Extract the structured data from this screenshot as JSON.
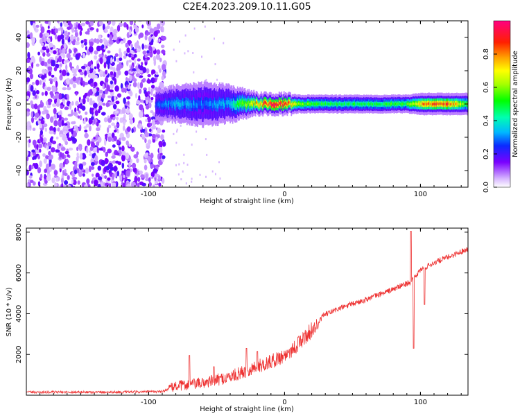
{
  "figure_title": "C2E4.2023.209.10.11.G05",
  "chart_data": [
    {
      "type": "heatmap",
      "title": "",
      "xlabel": "Height of straight line (km)",
      "ylabel": "Frequency (Hz)",
      "xlim": [
        -190,
        135
      ],
      "ylim": [
        -50,
        50
      ],
      "xticks": [
        -100,
        0,
        100
      ],
      "yticks": [
        -40,
        -20,
        0,
        20,
        40
      ],
      "xtick_labels": [
        "-100",
        "0",
        "100"
      ],
      "ytick_labels": [
        "-40",
        "-20",
        "0",
        "20",
        "40"
      ],
      "colorbar": {
        "label": "Normalized spectral amplitude",
        "range": [
          0,
          1
        ],
        "ticks": [
          0.0,
          0.2,
          0.4,
          0.6,
          0.8
        ],
        "tick_labels": [
          "0.0",
          "0.2",
          "0.4",
          "0.6",
          "0.8"
        ],
        "colormap": "rainbow (white-violet-blue-cyan-green-yellow-orange-red-magenta)"
      },
      "noise_region_x": [
        -190,
        -88
      ],
      "signal_band": {
        "center_hz": 0,
        "x_points": [
          -95,
          -80,
          -60,
          -40,
          -30,
          -20,
          -10,
          0,
          10,
          30,
          60,
          90,
          100,
          120,
          135
        ],
        "half_width_hz": [
          4,
          5,
          6,
          5,
          4,
          3,
          3,
          3,
          2.5,
          2.5,
          2.5,
          2.5,
          3,
          3,
          3
        ],
        "peak_amplitude": [
          0.3,
          0.35,
          0.3,
          0.35,
          0.6,
          0.75,
          0.95,
          0.95,
          0.6,
          0.5,
          0.5,
          0.55,
          0.8,
          0.9,
          0.5
        ]
      }
    },
    {
      "type": "line",
      "title": "",
      "xlabel": "Height of straight line (km)",
      "ylabel": "SNR (10 * v/v)",
      "xlim": [
        -190,
        135
      ],
      "ylim": [
        0,
        8200
      ],
      "xticks": [
        -100,
        0,
        100
      ],
      "yticks": [
        2000,
        4000,
        6000,
        8000
      ],
      "xtick_labels": [
        "-100",
        "0",
        "100"
      ],
      "ytick_labels": [
        "2000",
        "4000",
        "6000",
        "8000"
      ],
      "line_color": "#ee3333",
      "trend": {
        "x": [
          -190,
          -120,
          -90,
          -80,
          -60,
          -40,
          -20,
          -10,
          0,
          10,
          20,
          25,
          28,
          40,
          60,
          80,
          94,
          100,
          110,
          125,
          135
        ],
        "y": [
          150,
          150,
          180,
          450,
          600,
          900,
          1400,
          1650,
          1950,
          2500,
          3200,
          3500,
          3900,
          4250,
          4700,
          5200,
          5600,
          6150,
          6500,
          6900,
          7200
        ]
      },
      "spikes": [
        {
          "x": -70,
          "y": 1950
        },
        {
          "x": -52,
          "y": 1400
        },
        {
          "x": -28,
          "y": 2300
        },
        {
          "x": -20,
          "y": 2150
        },
        {
          "x": 10,
          "y": 2850
        },
        {
          "x": 93,
          "y": 8050
        },
        {
          "x": 95,
          "y": 2300
        },
        {
          "x": 103,
          "y": 4450
        }
      ]
    }
  ]
}
